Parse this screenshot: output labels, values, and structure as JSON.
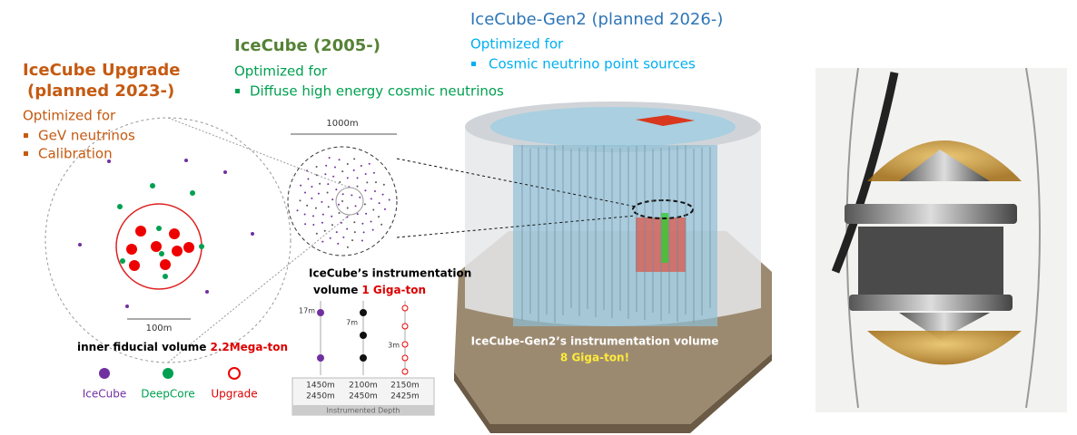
{
  "upgrade": {
    "title": [
      "IceCube Upgrade",
      "(planned 2023-)"
    ],
    "subtitle": "Optimized for",
    "bullets": [
      "GeV neutrinos",
      "Calibration"
    ]
  },
  "icecube": {
    "title": "IceCube (2005-)",
    "subtitle": "Optimized for",
    "bullets": [
      "Diffuse high energy cosmic neutrinos"
    ]
  },
  "gen2": {
    "title": "IceCube-Gen2 (planned 2026-)",
    "subtitle": "Optimized for",
    "bullets": [
      "Cosmic neutrino point sources"
    ]
  },
  "inset": {
    "scale_big": "1000m",
    "scale_small": "100m",
    "fiducial": {
      "text": "inner fiducial volume",
      "value": "2.2Mega-ton"
    }
  },
  "legend": [
    "IceCube",
    "DeepCore",
    "Upgrade"
  ],
  "instrumentation": {
    "text": [
      "IceCube’s instrumentation",
      "volume"
    ],
    "value": "1 Giga-ton",
    "spacings": [
      "17m",
      "7m",
      "3m"
    ],
    "depths": [
      [
        "1450m",
        "2450m"
      ],
      [
        "2100m",
        "2450m"
      ],
      [
        "2150m",
        "2425m"
      ]
    ],
    "axis_label": "Instrumented Depth"
  },
  "gen2_volume": {
    "text": "IceCube-Gen2’s instrumentation volume",
    "value": "8 Giga-ton!"
  }
}
